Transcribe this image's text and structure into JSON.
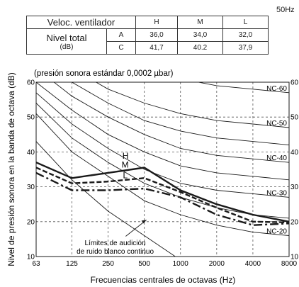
{
  "table": {
    "frequency_note": "50Hz",
    "fan_speed_label": "Veloc. ventilador",
    "speeds": [
      "H",
      "M",
      "L"
    ],
    "total_level_label": "Nivel total",
    "total_level_unit": "(dB)",
    "rows": [
      {
        "weighting": "A",
        "values": [
          "36,0",
          "34,0",
          "32,0"
        ]
      },
      {
        "weighting": "C",
        "values": [
          "41,7",
          "40.2",
          "37,9"
        ]
      }
    ]
  },
  "chart_data": {
    "type": "line",
    "subtitle": "(presión sonora estándar 0,0002 µbar)",
    "xlabel": "Frecuencias centrales de octavas (Hz)",
    "ylabel": "Nivel de presión sonora en la banda de octava (dB)",
    "x_scale": "log2",
    "x_ticks": [
      63,
      125,
      250,
      500,
      1000,
      2000,
      4000,
      8000
    ],
    "x_tick_labels": [
      "63",
      "125",
      "250",
      "500",
      "1000",
      "2000",
      "4000",
      "8000"
    ],
    "ylim": [
      10,
      60
    ],
    "y_ticks": [
      10,
      20,
      30,
      40,
      50,
      60
    ],
    "y_tick_labels": [
      "10",
      "20",
      "30",
      "40",
      "50",
      "60"
    ],
    "grid": true,
    "series": [
      {
        "name": "H",
        "style": "solid",
        "color": "#1a1a1a",
        "x": [
          63,
          125,
          250,
          500,
          1000,
          2000,
          4000,
          8000
        ],
        "y": [
          37,
          32.5,
          34,
          35.5,
          29,
          25,
          22,
          20
        ]
      },
      {
        "name": "M",
        "style": "short-dash",
        "color": "#1a1a1a",
        "x": [
          63,
          125,
          250,
          500,
          1000,
          2000,
          4000,
          8000
        ],
        "y": [
          35.5,
          31,
          31.5,
          32.5,
          28.5,
          24,
          20,
          19.8
        ]
      },
      {
        "name": "L",
        "style": "dash-dot",
        "color": "#1a1a1a",
        "x": [
          63,
          125,
          250,
          500,
          1000,
          2000,
          4000,
          8000
        ],
        "y": [
          34,
          29,
          29,
          29.5,
          27,
          22,
          19,
          19.5
        ]
      }
    ],
    "nc_curves": [
      {
        "label": "NC-60",
        "x": [
          63,
          125,
          250,
          500,
          1000,
          2000,
          4000,
          8000
        ],
        "y": [
          77,
          71,
          67,
          63,
          61,
          59,
          58,
          57
        ]
      },
      {
        "label": "NC-50",
        "x": [
          63,
          125,
          250,
          500,
          1000,
          2000,
          4000,
          8000
        ],
        "y": [
          71,
          64,
          58,
          54,
          51,
          49,
          48,
          47
        ]
      },
      {
        "label": "NC-40",
        "x": [
          63,
          125,
          250,
          500,
          1000,
          2000,
          4000,
          8000
        ],
        "y": [
          64,
          56,
          50,
          45,
          41,
          39,
          38,
          37
        ]
      },
      {
        "label": "NC-30",
        "x": [
          63,
          125,
          250,
          500,
          1000,
          2000,
          4000,
          8000
        ],
        "y": [
          57,
          48,
          41,
          35,
          31,
          29,
          28,
          27
        ]
      },
      {
        "label": "NC-20",
        "x": [
          63,
          125,
          250,
          500,
          1000,
          2000,
          4000,
          8000
        ],
        "y": [
          51,
          40,
          33,
          26,
          22,
          19,
          17,
          16
        ]
      }
    ],
    "extra_curves": [
      {
        "x": [
          63,
          125,
          250,
          500,
          1000,
          2000,
          4000,
          8000
        ],
        "y": [
          68,
          60,
          54,
          49,
          46,
          44,
          43,
          42
        ]
      },
      {
        "x": [
          63,
          125,
          250,
          500,
          1000,
          2000,
          4000,
          8000
        ],
        "y": [
          60,
          52,
          45,
          40,
          36,
          34,
          33,
          32
        ]
      },
      {
        "x": [
          63,
          125,
          250,
          500,
          1000,
          2000,
          4000,
          8000
        ],
        "y": [
          54,
          44,
          37,
          31,
          27,
          24,
          22,
          21
        ]
      }
    ],
    "threshold_curve": {
      "label_lines": [
        "Límites de audición",
        "de ruido blanco continuo"
      ],
      "x": [
        63,
        125,
        250,
        500,
        1000
      ],
      "y": [
        43,
        32,
        23,
        16,
        9
      ]
    }
  }
}
